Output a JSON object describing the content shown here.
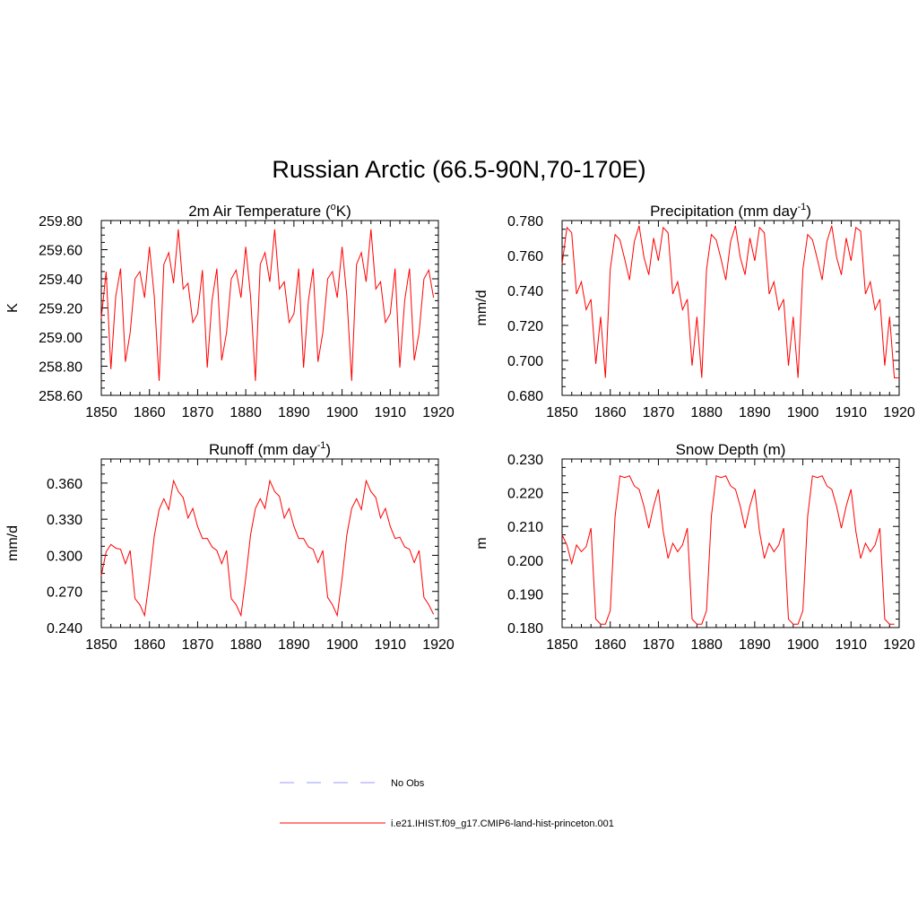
{
  "title": "Russian Arctic (66.5-90N,70-170E)",
  "legend": [
    {
      "label": "No Obs",
      "color": "#9999ff",
      "dash": true
    },
    {
      "label": "i.e21.IHIST.f09_g17.CMIP6-land-hist-princeton.001",
      "color": "#ff0000",
      "dash": false
    }
  ],
  "chart_data": [
    {
      "type": "line",
      "title_main": "2m Air Temperature (",
      "title_sup": "o",
      "title_tail": "K)",
      "ylabel": "K",
      "xlim": [
        1850,
        1920
      ],
      "ylim": [
        258.6,
        259.8
      ],
      "xticks": [
        "1850",
        "1860",
        "1870",
        "1880",
        "1890",
        "1900",
        "1910",
        "1920"
      ],
      "yticks": [
        "258.60",
        "258.80",
        "259.00",
        "259.20",
        "259.40",
        "259.60",
        "259.80"
      ],
      "series": [
        {
          "color": "#ff0000",
          "x": [
            1850,
            1851,
            1852,
            1853,
            1854,
            1855,
            1856,
            1857,
            1858,
            1859,
            1860,
            1861,
            1862,
            1863,
            1864,
            1865,
            1866,
            1867,
            1868,
            1869,
            1870,
            1871,
            1872,
            1873,
            1874,
            1875,
            1876,
            1877,
            1878,
            1879,
            1880,
            1881,
            1882,
            1883,
            1884,
            1885,
            1886,
            1887,
            1888,
            1889,
            1890,
            1891,
            1892,
            1893,
            1894,
            1895,
            1896,
            1897,
            1898,
            1899,
            1900,
            1901,
            1902,
            1903,
            1904,
            1905,
            1906,
            1907,
            1908,
            1909,
            1910,
            1911,
            1912,
            1913,
            1914,
            1915,
            1916,
            1917,
            1918,
            1919
          ],
          "values": [
            259.13,
            259.45,
            258.78,
            259.28,
            259.47,
            258.83,
            259.03,
            259.4,
            259.45,
            259.27,
            259.62,
            259.28,
            258.7,
            259.5,
            259.58,
            259.37,
            259.74,
            259.33,
            259.37,
            259.1,
            259.16,
            259.46,
            258.79,
            259.25,
            259.47,
            258.84,
            259.03,
            259.4,
            259.46,
            259.27,
            259.62,
            259.28,
            258.7,
            259.5,
            259.58,
            259.38,
            259.74,
            259.33,
            259.38,
            259.1,
            259.16,
            259.47,
            258.79,
            259.25,
            259.47,
            258.83,
            259.03,
            259.4,
            259.45,
            259.27,
            259.62,
            259.28,
            258.7,
            259.5,
            259.58,
            259.38,
            259.74,
            259.33,
            259.38,
            259.1,
            259.16,
            259.47,
            258.79,
            259.25,
            259.47,
            258.84,
            259.03,
            259.4,
            259.46,
            259.27
          ]
        }
      ]
    },
    {
      "type": "line",
      "title_main": "Precipitation (mm day",
      "title_sup": "-1",
      "title_tail": ")",
      "ylabel": "mm/d",
      "xlim": [
        1850,
        1920
      ],
      "ylim": [
        0.68,
        0.78
      ],
      "xticks": [
        "1850",
        "1860",
        "1870",
        "1880",
        "1890",
        "1900",
        "1910",
        "1920"
      ],
      "yticks": [
        "0.680",
        "0.700",
        "0.720",
        "0.740",
        "0.760",
        "0.780"
      ],
      "series": [
        {
          "color": "#ff0000",
          "x": [
            1850,
            1851,
            1852,
            1853,
            1854,
            1855,
            1856,
            1857,
            1858,
            1859,
            1860,
            1861,
            1862,
            1863,
            1864,
            1865,
            1866,
            1867,
            1868,
            1869,
            1870,
            1871,
            1872,
            1873,
            1874,
            1875,
            1876,
            1877,
            1878,
            1879,
            1880,
            1881,
            1882,
            1883,
            1884,
            1885,
            1886,
            1887,
            1888,
            1889,
            1890,
            1891,
            1892,
            1893,
            1894,
            1895,
            1896,
            1897,
            1898,
            1899,
            1900,
            1901,
            1902,
            1903,
            1904,
            1905,
            1906,
            1907,
            1908,
            1909,
            1910,
            1911,
            1912,
            1913,
            1914,
            1915,
            1916,
            1917,
            1918,
            1919,
            1920
          ],
          "values": [
            0.755,
            0.776,
            0.773,
            0.738,
            0.745,
            0.729,
            0.735,
            0.698,
            0.725,
            0.69,
            0.752,
            0.772,
            0.769,
            0.758,
            0.746,
            0.768,
            0.777,
            0.759,
            0.749,
            0.77,
            0.757,
            0.776,
            0.773,
            0.738,
            0.745,
            0.729,
            0.735,
            0.697,
            0.725,
            0.69,
            0.752,
            0.772,
            0.769,
            0.758,
            0.746,
            0.768,
            0.777,
            0.759,
            0.749,
            0.77,
            0.757,
            0.776,
            0.773,
            0.738,
            0.745,
            0.729,
            0.735,
            0.697,
            0.725,
            0.69,
            0.752,
            0.772,
            0.769,
            0.758,
            0.746,
            0.768,
            0.777,
            0.759,
            0.749,
            0.77,
            0.757,
            0.776,
            0.774,
            0.738,
            0.745,
            0.729,
            0.735,
            0.697,
            0.725,
            0.69,
            0.69
          ]
        }
      ]
    },
    {
      "type": "line",
      "title_main": "Runoff (mm day",
      "title_sup": "-1",
      "title_tail": ")",
      "ylabel": "mm/d",
      "xlim": [
        1850,
        1920
      ],
      "ylim": [
        0.24,
        0.38
      ],
      "xticks": [
        "1850",
        "1860",
        "1870",
        "1880",
        "1890",
        "1900",
        "1910",
        "1920"
      ],
      "yticks": [
        "0.240",
        "0.270",
        "0.300",
        "0.330",
        "0.360"
      ],
      "series": [
        {
          "color": "#ff0000",
          "x": [
            1850,
            1851,
            1852,
            1853,
            1854,
            1855,
            1856,
            1857,
            1858,
            1859,
            1860,
            1861,
            1862,
            1863,
            1864,
            1865,
            1866,
            1867,
            1868,
            1869,
            1870,
            1871,
            1872,
            1873,
            1874,
            1875,
            1876,
            1877,
            1878,
            1879,
            1880,
            1881,
            1882,
            1883,
            1884,
            1885,
            1886,
            1887,
            1888,
            1889,
            1890,
            1891,
            1892,
            1893,
            1894,
            1895,
            1896,
            1897,
            1898,
            1899,
            1900,
            1901,
            1902,
            1903,
            1904,
            1905,
            1906,
            1907,
            1908,
            1909,
            1910,
            1911,
            1912,
            1913,
            1914,
            1915,
            1916,
            1917,
            1918,
            1919
          ],
          "values": [
            0.283,
            0.303,
            0.309,
            0.306,
            0.305,
            0.293,
            0.304,
            0.264,
            0.259,
            0.25,
            0.28,
            0.316,
            0.338,
            0.347,
            0.338,
            0.362,
            0.353,
            0.348,
            0.331,
            0.339,
            0.324,
            0.314,
            0.314,
            0.307,
            0.304,
            0.293,
            0.304,
            0.264,
            0.259,
            0.25,
            0.281,
            0.317,
            0.339,
            0.347,
            0.339,
            0.362,
            0.353,
            0.349,
            0.331,
            0.339,
            0.324,
            0.314,
            0.314,
            0.307,
            0.305,
            0.294,
            0.304,
            0.265,
            0.259,
            0.25,
            0.281,
            0.317,
            0.339,
            0.347,
            0.338,
            0.362,
            0.353,
            0.348,
            0.331,
            0.339,
            0.324,
            0.314,
            0.315,
            0.307,
            0.305,
            0.294,
            0.304,
            0.265,
            0.259,
            0.251
          ]
        }
      ]
    },
    {
      "type": "line",
      "title_main": "Snow Depth (m)",
      "title_sup": "",
      "title_tail": "",
      "ylabel": "m",
      "xlim": [
        1850,
        1920
      ],
      "ylim": [
        0.18,
        0.23
      ],
      "xticks": [
        "1850",
        "1860",
        "1870",
        "1880",
        "1890",
        "1900",
        "1910",
        "1920"
      ],
      "yticks": [
        "0.180",
        "0.190",
        "0.200",
        "0.210",
        "0.220",
        "0.230"
      ],
      "series": [
        {
          "color": "#ff0000",
          "x": [
            1850,
            1851,
            1852,
            1853,
            1854,
            1855,
            1856,
            1857,
            1858,
            1859,
            1860,
            1861,
            1862,
            1863,
            1864,
            1865,
            1866,
            1867,
            1868,
            1869,
            1870,
            1871,
            1872,
            1873,
            1874,
            1875,
            1876,
            1877,
            1878,
            1879,
            1880,
            1881,
            1882,
            1883,
            1884,
            1885,
            1886,
            1887,
            1888,
            1889,
            1890,
            1891,
            1892,
            1893,
            1894,
            1895,
            1896,
            1897,
            1898,
            1899,
            1900,
            1901,
            1902,
            1903,
            1904,
            1905,
            1906,
            1907,
            1908,
            1909,
            1910,
            1911,
            1912,
            1913,
            1914,
            1915,
            1916,
            1917,
            1918,
            1919
          ],
          "values": [
            0.2075,
            0.2045,
            0.199,
            0.2045,
            0.2025,
            0.204,
            0.2095,
            0.1825,
            0.181,
            0.181,
            0.185,
            0.213,
            0.225,
            0.2245,
            0.225,
            0.222,
            0.221,
            0.216,
            0.2095,
            0.216,
            0.221,
            0.2085,
            0.2005,
            0.205,
            0.2025,
            0.2045,
            0.2095,
            0.1825,
            0.181,
            0.181,
            0.185,
            0.213,
            0.225,
            0.2245,
            0.225,
            0.222,
            0.221,
            0.216,
            0.2095,
            0.216,
            0.221,
            0.2085,
            0.2005,
            0.205,
            0.2025,
            0.2045,
            0.2095,
            0.1825,
            0.181,
            0.181,
            0.185,
            0.213,
            0.225,
            0.2245,
            0.225,
            0.222,
            0.221,
            0.216,
            0.2095,
            0.216,
            0.221,
            0.2085,
            0.2005,
            0.205,
            0.2025,
            0.2045,
            0.2095,
            0.1825,
            0.181,
            0.181
          ]
        }
      ]
    }
  ]
}
